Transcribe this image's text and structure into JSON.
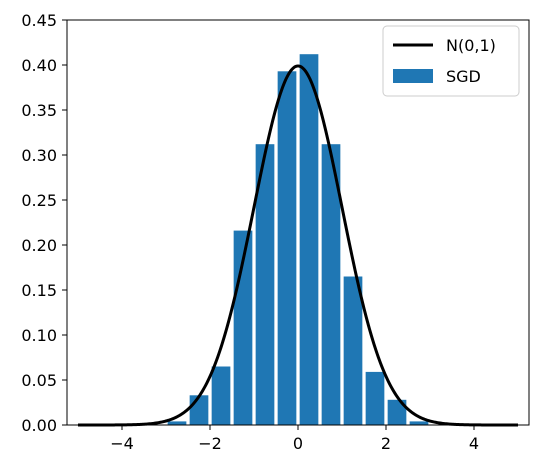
{
  "chart_data": {
    "type": "bar",
    "xlim": [
      -5.25,
      5.25
    ],
    "ylim": [
      0,
      0.45
    ],
    "x_ticks": [
      -4,
      -2,
      0,
      2,
      4
    ],
    "x_tick_labels": [
      "−4",
      "−2",
      "0",
      "2",
      "4"
    ],
    "y_ticks": [
      0.0,
      0.05,
      0.1,
      0.15,
      0.2,
      0.25,
      0.3,
      0.35,
      0.4,
      0.45
    ],
    "y_tick_labels": [
      "0.00",
      "0.05",
      "0.10",
      "0.15",
      "0.20",
      "0.25",
      "0.30",
      "0.35",
      "0.40",
      "0.45"
    ],
    "grid": false,
    "legend_position": "top-right",
    "series": [
      {
        "name": "SGD",
        "type": "bar",
        "color": "#1f77b4",
        "bin_width": 0.5,
        "bins": [
          {
            "x": -3.0,
            "y": 0.004
          },
          {
            "x": -2.5,
            "y": 0.033
          },
          {
            "x": -2.0,
            "y": 0.065
          },
          {
            "x": -1.5,
            "y": 0.216
          },
          {
            "x": -1.0,
            "y": 0.312
          },
          {
            "x": -0.5,
            "y": 0.393
          },
          {
            "x": 0.0,
            "y": 0.412
          },
          {
            "x": 0.5,
            "y": 0.312
          },
          {
            "x": 1.0,
            "y": 0.165
          },
          {
            "x": 1.5,
            "y": 0.059
          },
          {
            "x": 2.0,
            "y": 0.028
          },
          {
            "x": 2.5,
            "y": 0.004
          }
        ]
      },
      {
        "name": "N(0,1)",
        "type": "line",
        "color": "#000000",
        "function": "normal_pdf",
        "mean": 0,
        "std": 1,
        "x_range": [
          -5,
          5
        ]
      }
    ]
  }
}
